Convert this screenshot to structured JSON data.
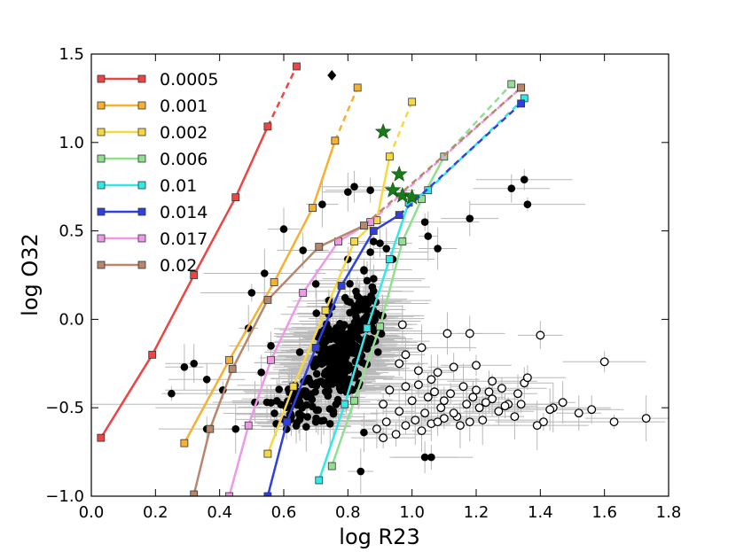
{
  "chart_data": {
    "type": "scatter",
    "xlabel": "log R23",
    "ylabel": "log O32",
    "xlim": [
      0.0,
      1.8
    ],
    "ylim": [
      -1.0,
      1.5
    ],
    "xticks": [
      0.0,
      0.2,
      0.4,
      0.6,
      0.8,
      1.0,
      1.2,
      1.4,
      1.6,
      1.8
    ],
    "xtick_labels": [
      "0.0",
      "0.2",
      "0.4",
      "0.6",
      "0.8",
      "1.0",
      "1.2",
      "1.4",
      "1.6",
      "1.8"
    ],
    "yticks": [
      -1.0,
      -0.5,
      0.0,
      0.5,
      1.0,
      1.5
    ],
    "ytick_labels": [
      "−1.0",
      "−0.5",
      "0.0",
      "0.5",
      "1.0",
      "1.5"
    ],
    "legend_position": "top-left",
    "series": [
      {
        "name": "0.0005",
        "color": "#ee4444",
        "x": [
          0.03,
          0.19,
          0.32,
          0.45,
          0.55
        ],
        "y": [
          -0.67,
          -0.2,
          0.25,
          0.69,
          1.09
        ],
        "dashed_x": [
          0.55,
          0.64
        ],
        "dashed_y": [
          1.09,
          1.43
        ]
      },
      {
        "name": "0.001",
        "color": "#f8b030",
        "x": [
          0.29,
          0.43,
          0.57,
          0.69,
          0.76
        ],
        "y": [
          -0.7,
          -0.23,
          0.21,
          0.63,
          1.01
        ],
        "dashed_x": [
          0.76,
          0.83
        ],
        "dashed_y": [
          1.01,
          1.31
        ]
      },
      {
        "name": "0.002",
        "color": "#f8d840",
        "x": [
          0.55,
          0.63,
          0.73,
          0.82,
          0.89,
          0.93
        ],
        "y": [
          -0.76,
          -0.38,
          0.05,
          0.44,
          0.56,
          0.92
        ],
        "dashed_x": [
          0.93,
          1.0
        ],
        "dashed_y": [
          0.92,
          1.23
        ]
      },
      {
        "name": "0.006",
        "color": "#90e090",
        "x": [
          0.75,
          0.82,
          0.9,
          0.97,
          1.03,
          1.1
        ],
        "y": [
          -0.83,
          -0.46,
          -0.04,
          0.44,
          0.68,
          0.92
        ],
        "dashed_x": [
          1.1,
          1.31
        ],
        "dashed_y": [
          0.92,
          1.33
        ]
      },
      {
        "name": "0.01",
        "color": "#30e8e8",
        "x": [
          0.71,
          0.79,
          0.86,
          0.93,
          0.99,
          1.05
        ],
        "y": [
          -0.91,
          -0.48,
          -0.05,
          0.34,
          0.66,
          0.73
        ],
        "dashed_x": [
          1.05,
          1.35
        ],
        "dashed_y": [
          0.73,
          1.25
        ]
      },
      {
        "name": "0.014",
        "color": "#3040e0",
        "x": [
          0.55,
          0.61,
          0.7,
          0.78,
          0.88,
          0.96
        ],
        "y": [
          -1.0,
          -0.58,
          -0.16,
          0.19,
          0.5,
          0.59
        ],
        "dashed_x": [
          0.96,
          1.34
        ],
        "dashed_y": [
          0.59,
          1.22
        ]
      },
      {
        "name": "0.017",
        "color": "#f098e8",
        "x": [
          0.43,
          0.49,
          0.56,
          0.66,
          0.77,
          0.87
        ],
        "y": [
          -1.0,
          -0.6,
          -0.23,
          0.15,
          0.44,
          0.55
        ],
        "dashed_x": [
          0.87,
          1.34
        ],
        "dashed_y": [
          0.55,
          1.31
        ]
      },
      {
        "name": "0.02",
        "color": "#b8866a",
        "x": [
          0.32,
          0.37,
          0.44,
          0.55,
          0.71,
          0.85
        ],
        "y": [
          -0.99,
          -0.62,
          -0.28,
          0.11,
          0.41,
          0.53
        ],
        "dashed_x": [
          0.85,
          1.34
        ],
        "dashed_y": [
          0.53,
          1.31
        ]
      }
    ],
    "stars": {
      "color": "#1a7a1a",
      "x": [
        0.91,
        0.96,
        0.94,
        0.97,
        1.0
      ],
      "y": [
        1.06,
        0.82,
        0.73,
        0.7,
        0.69
      ]
    },
    "diamond": {
      "x": [
        0.75
      ],
      "y": [
        1.38
      ]
    },
    "filled_points": {
      "x": [
        0.25,
        0.29,
        0.32,
        0.36,
        0.36,
        0.41,
        0.45,
        0.51,
        0.53,
        0.56,
        0.63,
        0.7,
        0.72,
        0.8,
        0.82,
        0.87,
        1.04,
        1.05,
        1.08,
        1.18,
        1.31,
        1.35,
        1.36,
        0.84,
        0.85,
        1.04,
        1.06,
        0.5,
        0.54,
        0.6,
        0.66,
        0.7,
        0.75,
        0.86,
        0.49,
        0.83,
        0.88,
        0.8,
        0.85,
        0.87,
        0.92,
        0.88,
        0.9,
        0.94
      ],
      "y": [
        -0.42,
        -0.27,
        -0.25,
        -0.34,
        -0.62,
        -0.4,
        -0.62,
        -0.47,
        -0.3,
        -0.15,
        -0.45,
        -0.58,
        0.65,
        0.72,
        0.75,
        0.73,
        0.55,
        0.47,
        0.4,
        0.57,
        0.74,
        0.79,
        0.65,
        -0.86,
        -0.64,
        -0.78,
        -0.78,
        0.15,
        0.26,
        0.51,
        0.39,
        0.2,
        0.07,
        0.02,
        -0.05,
        0.13,
        0.16,
        0.34,
        0.28,
        0.38,
        0.4,
        0.44,
        0.43,
        0.34
      ]
    },
    "open_points": {
      "x": [
        0.91,
        0.93,
        0.96,
        0.98,
        1.0,
        1.02,
        1.04,
        1.05,
        1.07,
        1.09,
        1.1,
        1.12,
        1.14,
        1.16,
        1.17,
        1.19,
        1.2,
        1.21,
        1.22,
        1.24,
        1.25,
        1.27,
        1.28,
        1.3,
        1.32,
        1.33,
        1.35,
        1.36,
        1.41,
        1.44,
        1.47,
        1.52,
        1.56,
        1.6,
        1.63,
        1.73,
        0.89,
        0.92,
        0.95,
        0.98,
        1.01,
        1.03,
        1.06,
        1.08,
        1.1,
        1.13,
        1.15,
        1.18,
        1.23,
        1.29,
        1.34,
        1.39,
        1.43,
        1.08,
        1.13,
        1.2,
        1.25,
        1.03,
        0.97,
        0.98,
        0.96,
        1.02,
        1.06,
        1.11,
        1.18,
        1.4,
        0.91
      ],
      "y": [
        -0.48,
        -0.4,
        -0.52,
        -0.38,
        -0.46,
        -0.37,
        -0.53,
        -0.44,
        -0.41,
        -0.5,
        -0.46,
        -0.42,
        -0.55,
        -0.38,
        -0.48,
        -0.44,
        -0.4,
        -0.5,
        -0.57,
        -0.41,
        -0.45,
        -0.52,
        -0.39,
        -0.48,
        -0.55,
        -0.42,
        -0.36,
        -0.33,
        -0.58,
        -0.5,
        -0.47,
        -0.53,
        -0.51,
        -0.24,
        -0.58,
        -0.56,
        -0.62,
        -0.58,
        -0.65,
        -0.6,
        -0.57,
        -0.63,
        -0.59,
        -0.58,
        -0.56,
        -0.53,
        -0.6,
        -0.58,
        -0.47,
        -0.49,
        -0.48,
        -0.6,
        -0.51,
        -0.3,
        -0.27,
        -0.26,
        -0.35,
        -0.16,
        -0.03,
        -0.2,
        -0.25,
        -0.29,
        -0.34,
        -0.08,
        -0.08,
        -0.09,
        -0.67
      ]
    },
    "filled_cloud_seed": 7,
    "filled_cloud_count": 340
  }
}
